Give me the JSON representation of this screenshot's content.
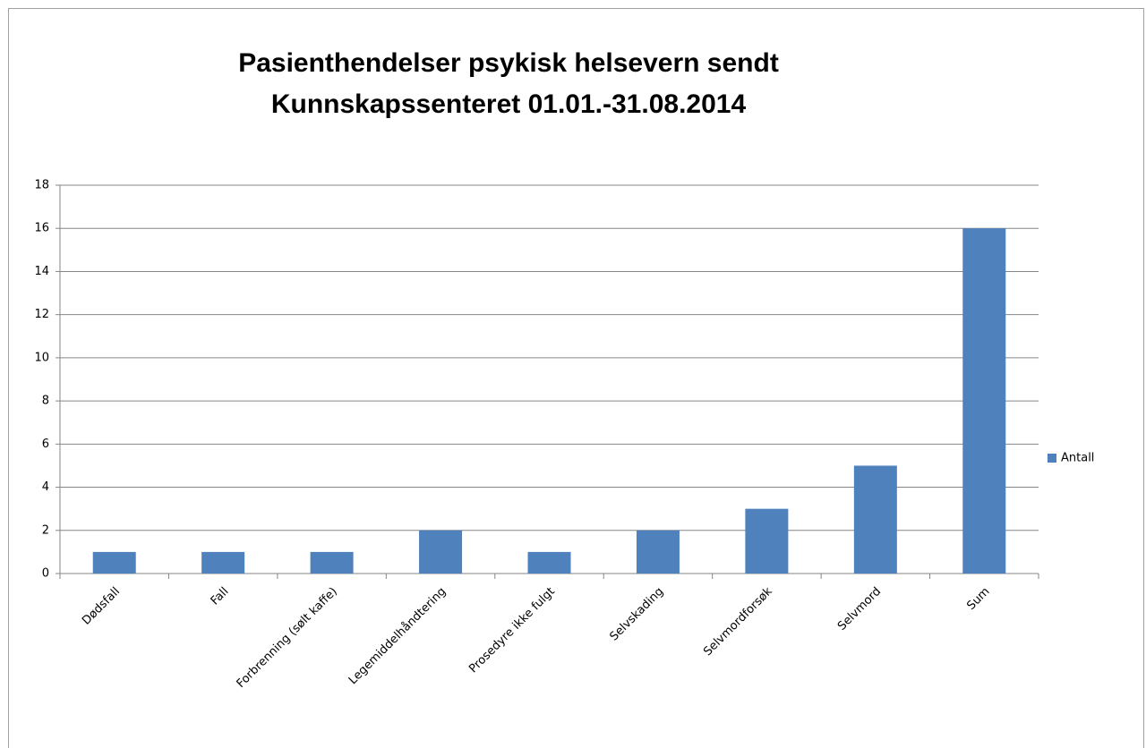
{
  "chart_data": {
    "type": "bar",
    "title": [
      "Pasienthendelser psykisk helsevern sendt",
      "Kunnskapssenteret 01.01.-31.08.2014"
    ],
    "categories": [
      "Dødsfall",
      "Fall",
      "Forbrenning (sølt kaffe)",
      "Legemiddelhåndtering",
      "Prosedyre ikke fulgt",
      "Selvskading",
      "Selvmordforsøk",
      "Selvmord",
      "Sum"
    ],
    "series": [
      {
        "name": "Antall",
        "color": "#4f81bd",
        "values": [
          1,
          1,
          1,
          2,
          1,
          2,
          3,
          5,
          16
        ]
      }
    ],
    "ylim": [
      0,
      18
    ],
    "yticks": [
      0,
      2,
      4,
      6,
      8,
      10,
      12,
      14,
      16,
      18
    ],
    "grid": true,
    "legend": "right"
  }
}
